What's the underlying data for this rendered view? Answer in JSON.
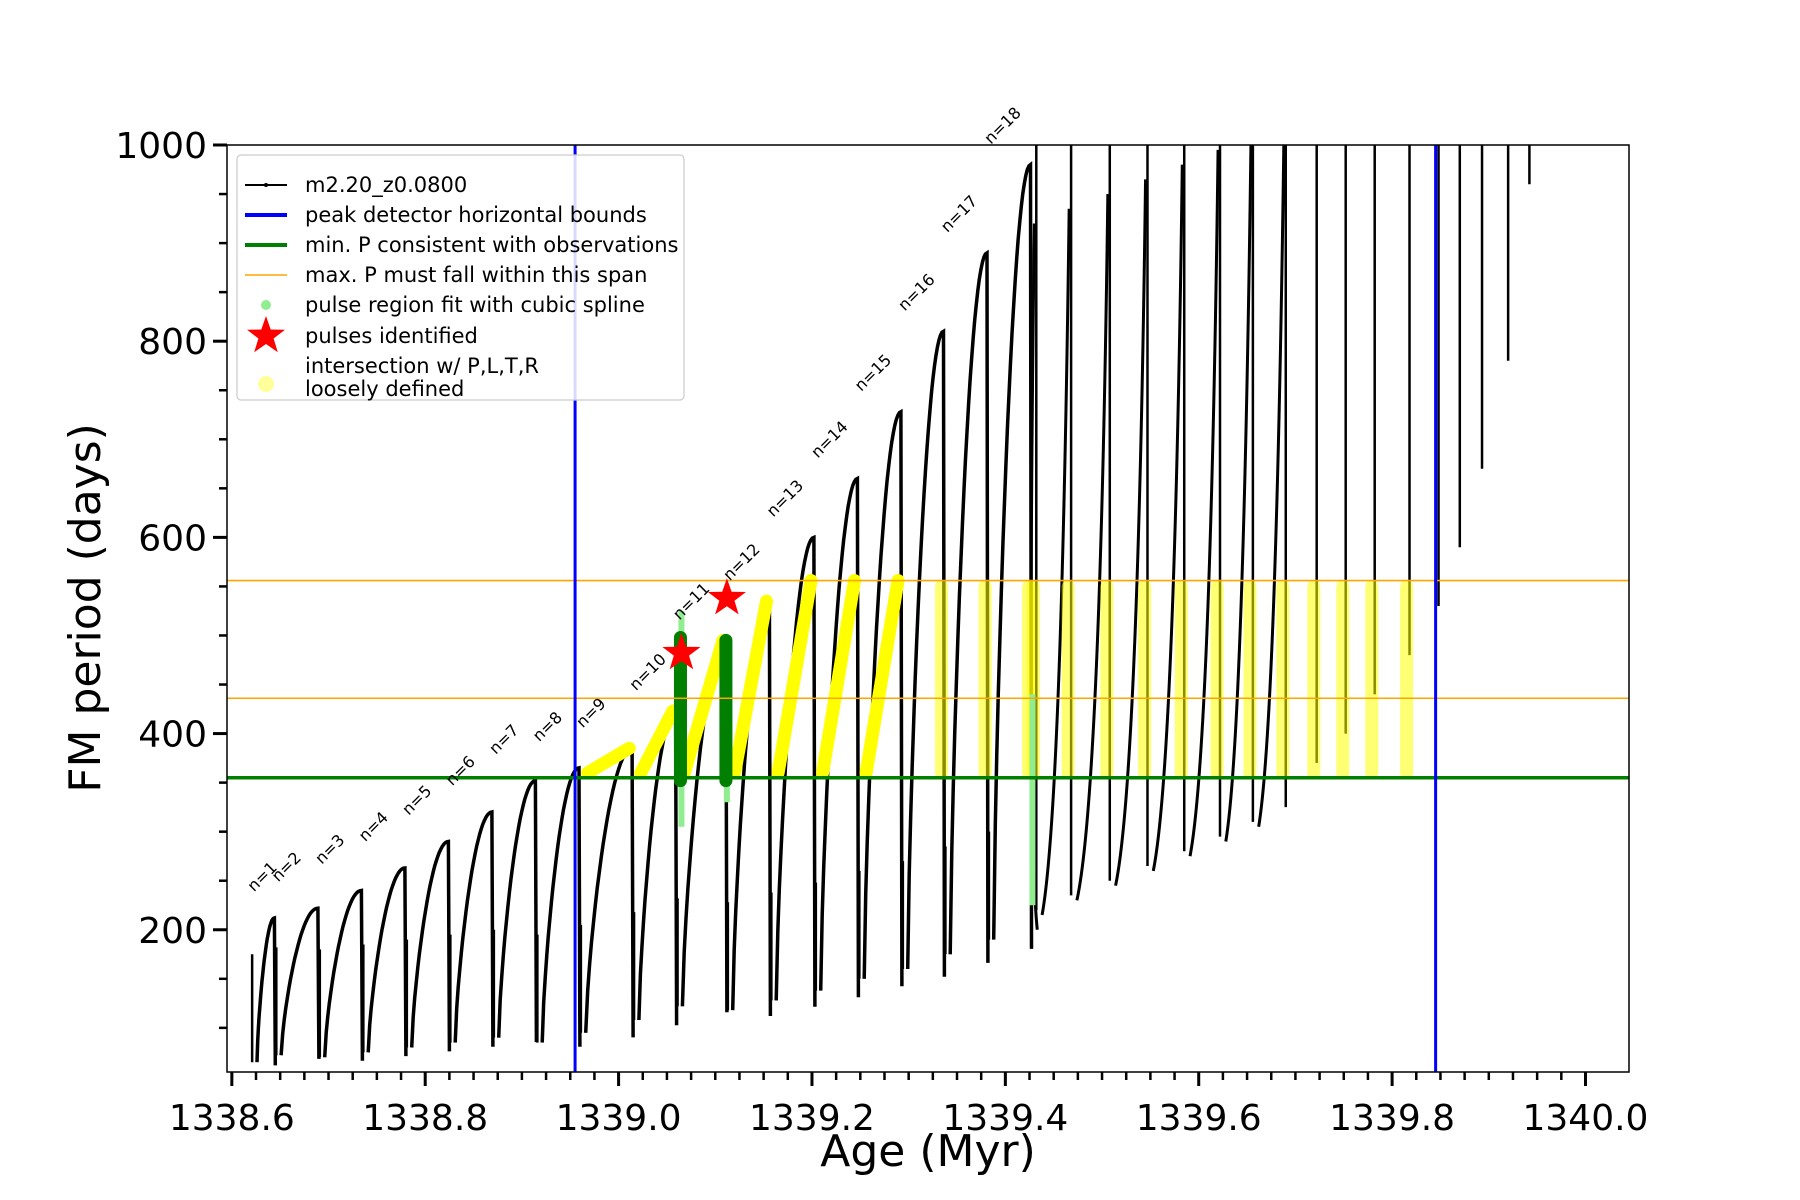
{
  "chart_data": {
    "type": "line",
    "title": "",
    "xlabel": "Age (Myr)",
    "ylabel": "FM period (days)",
    "xlim": [
      1338.595,
      1340.045
    ],
    "ylim": [
      55,
      1000
    ],
    "x_ticks": [
      "1338.6",
      "1338.8",
      "1339.0",
      "1339.2",
      "1339.4",
      "1339.6",
      "1339.8",
      "1340.0"
    ],
    "x_tick_values": [
      1338.6,
      1338.8,
      1339.0,
      1339.2,
      1339.4,
      1339.6,
      1339.8,
      1340.0
    ],
    "y_ticks": [
      "200",
      "400",
      "600",
      "800",
      "1000"
    ],
    "y_tick_values": [
      200,
      400,
      600,
      800,
      1000
    ],
    "grid": false,
    "legend_position": "top-left",
    "legend": [
      {
        "label": "m2.20_z0.0800",
        "style": "line-dot",
        "color": "#000000"
      },
      {
        "label": "peak detector horizontal bounds",
        "style": "line",
        "color": "#0000ff"
      },
      {
        "label": "min. P consistent with observations",
        "style": "line",
        "color": "#007f00"
      },
      {
        "label": "max. P must fall within this span",
        "style": "thin-line",
        "color": "#ffa500"
      },
      {
        "label": "pulse region fit with cubic spline",
        "style": "dot",
        "color": "#90ee90"
      },
      {
        "label": "pulses identified",
        "style": "star",
        "color": "#ff0000"
      },
      {
        "label": "intersection w/ P,L,T,R",
        "label2": "loosely defined",
        "style": "big-dot",
        "color": "#ffff99"
      }
    ],
    "vertical_lines": [
      {
        "name": "peak detector horizontal bounds",
        "x": 1338.955,
        "color": "#0000ff"
      },
      {
        "name": "peak detector horizontal bounds",
        "x": 1339.845,
        "color": "#0000ff"
      }
    ],
    "horizontal_lines": [
      {
        "name": "min. P consistent with observations",
        "y": 355,
        "color": "#007f00"
      },
      {
        "name": "max. P must fall within this span",
        "y": 436,
        "color": "#ffa500"
      },
      {
        "name": "max. P must fall within this span",
        "y": 556,
        "color": "#ffa500"
      }
    ],
    "series": [
      {
        "name": "m2.20_z0.0800",
        "color": "#000000",
        "pulses": [
          {
            "n": 1,
            "x_start": 1338.62,
            "x_end": 1338.645,
            "y_min": 65,
            "y_max": 212
          },
          {
            "n": 2,
            "x_start": 1338.645,
            "x_end": 1338.69,
            "y_min": 72,
            "y_max": 222
          },
          {
            "n": 3,
            "x_start": 1338.69,
            "x_end": 1338.735,
            "y_min": 70,
            "y_max": 240
          },
          {
            "n": 4,
            "x_start": 1338.735,
            "x_end": 1338.78,
            "y_min": 75,
            "y_max": 263
          },
          {
            "n": 5,
            "x_start": 1338.78,
            "x_end": 1338.825,
            "y_min": 80,
            "y_max": 290
          },
          {
            "n": 6,
            "x_start": 1338.825,
            "x_end": 1338.87,
            "y_min": 85,
            "y_max": 320
          },
          {
            "n": 7,
            "x_start": 1338.87,
            "x_end": 1338.915,
            "y_min": 90,
            "y_max": 352
          },
          {
            "n": 8,
            "x_start": 1338.915,
            "x_end": 1338.96,
            "y_min": 85,
            "y_max": 365
          },
          {
            "n": 9,
            "x_start": 1338.96,
            "x_end": 1339.015,
            "y_min": 95,
            "y_max": 385
          },
          {
            "n": 10,
            "x_start": 1339.015,
            "x_end": 1339.06,
            "y_min": 108,
            "y_max": 423
          },
          {
            "n": 11,
            "x_start": 1339.06,
            "x_end": 1339.112,
            "y_min": 122,
            "y_max": 495
          },
          {
            "n": 12,
            "x_start": 1339.112,
            "x_end": 1339.157,
            "y_min": 118,
            "y_max": 535
          },
          {
            "n": 13,
            "x_start": 1339.157,
            "x_end": 1339.203,
            "y_min": 128,
            "y_max": 600
          },
          {
            "n": 14,
            "x_start": 1339.203,
            "x_end": 1339.248,
            "y_min": 138,
            "y_max": 660
          },
          {
            "n": 15,
            "x_start": 1339.248,
            "x_end": 1339.293,
            "y_min": 150,
            "y_max": 728
          },
          {
            "n": 16,
            "x_start": 1339.293,
            "x_end": 1339.337,
            "y_min": 160,
            "y_max": 810
          },
          {
            "n": 17,
            "x_start": 1339.337,
            "x_end": 1339.382,
            "y_min": 175,
            "y_max": 890
          },
          {
            "n": 18,
            "x_start": 1339.382,
            "x_end": 1339.427,
            "y_min": 190,
            "y_max": 980
          }
        ],
        "late_spikes": [
          {
            "x": 1339.432,
            "y_min": 220,
            "y_max": 1000
          },
          {
            "x": 1339.468,
            "y_min": 235,
            "y_max": 1000
          },
          {
            "x": 1339.508,
            "y_min": 250,
            "y_max": 1000
          },
          {
            "x": 1339.547,
            "y_min": 265,
            "y_max": 1000
          },
          {
            "x": 1339.585,
            "y_min": 280,
            "y_max": 1000
          },
          {
            "x": 1339.622,
            "y_min": 295,
            "y_max": 1000
          },
          {
            "x": 1339.656,
            "y_min": 310,
            "y_max": 1000
          },
          {
            "x": 1339.69,
            "y_min": 325,
            "y_max": 1000
          },
          {
            "x": 1339.722,
            "y_min": 370,
            "y_max": 1000
          },
          {
            "x": 1339.752,
            "y_min": 400,
            "y_max": 1000
          },
          {
            "x": 1339.782,
            "y_min": 440,
            "y_max": 1000
          },
          {
            "x": 1339.818,
            "y_min": 480,
            "y_max": 1000
          },
          {
            "x": 1339.848,
            "y_min": 530,
            "y_max": 1000
          },
          {
            "x": 1339.87,
            "y_min": 590,
            "y_max": 1000
          },
          {
            "x": 1339.893,
            "y_min": 670,
            "y_max": 1000
          },
          {
            "x": 1339.92,
            "y_min": 780,
            "y_max": 1000
          },
          {
            "x": 1339.942,
            "y_min": 960,
            "y_max": 1000
          }
        ]
      }
    ],
    "pulses_identified": [
      {
        "n": 11,
        "x": 1339.065,
        "y": 482
      },
      {
        "n": 12,
        "x": 1339.112,
        "y": 538
      }
    ],
    "spline_fit_regions": [
      {
        "x": 1339.065,
        "y_min": 305,
        "y_max": 525
      },
      {
        "x": 1339.112,
        "y_min": 330,
        "y_max": 495
      },
      {
        "x": 1339.428,
        "y_min": 225,
        "y_max": 440
      }
    ]
  }
}
